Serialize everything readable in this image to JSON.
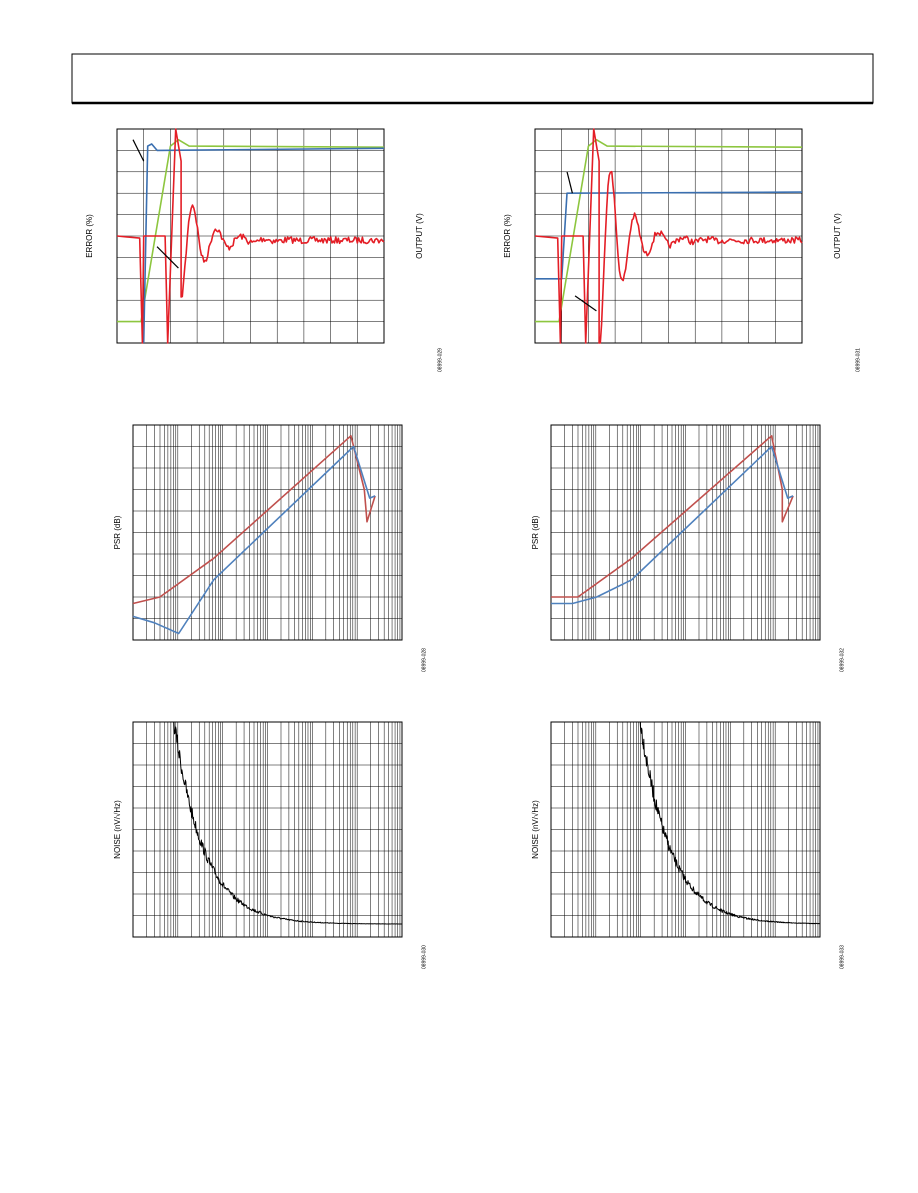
{
  "figures": [
    {
      "y_label": "ERROR (%)",
      "y2_label": "OUTPUT (V)",
      "code": "08999-029"
    },
    {
      "y_label": "ERROR (%)",
      "y2_label": "OUTPUT (V)",
      "code": "08999-031"
    },
    {
      "y_label": "PSR (dB)",
      "code": "08999-028"
    },
    {
      "y_label": "PSR (dB)",
      "code": "08999-032"
    },
    {
      "y_label": "NOISE (nV/√Hz)",
      "code": "08999-030"
    },
    {
      "y_label": "NOISE (nV/√Hz)",
      "code": "08999-033"
    }
  ]
}
